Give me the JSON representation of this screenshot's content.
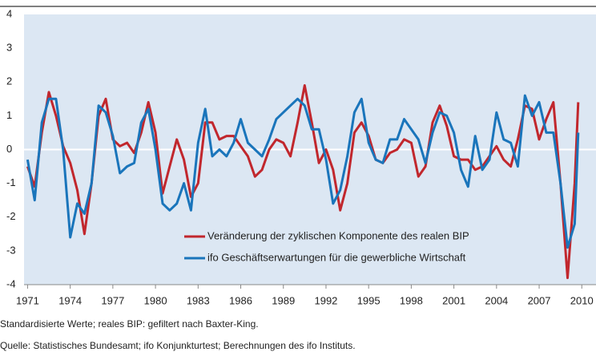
{
  "chart_data": {
    "type": "line",
    "notes": [
      "Standardisierte Werte; reales BIP: gefiltert nach Baxter-King.",
      "Quelle: Statistisches Bundesamt; ifo Konjunkturtest; Berechnungen des ifo Instituts."
    ],
    "x": [
      1971,
      1971.5,
      1972,
      1972.5,
      1973,
      1973.5,
      1974,
      1974.5,
      1975,
      1975.5,
      1976,
      1976.5,
      1977,
      1977.5,
      1978,
      1978.5,
      1979,
      1979.5,
      1980,
      1980.5,
      1981,
      1981.5,
      1982,
      1982.5,
      1983,
      1983.5,
      1984,
      1984.5,
      1985,
      1985.5,
      1986,
      1986.5,
      1987,
      1987.5,
      1988,
      1988.5,
      1989,
      1989.5,
      1990,
      1990.5,
      1991,
      1991.5,
      1992,
      1992.5,
      1993,
      1993.5,
      1994,
      1994.5,
      1995,
      1995.5,
      1996,
      1996.5,
      1997,
      1997.5,
      1998,
      1998.5,
      1999,
      1999.5,
      2000,
      2000.5,
      2001,
      2001.5,
      2002,
      2002.5,
      2003,
      2003.5,
      2004,
      2004.5,
      2005,
      2005.5,
      2006,
      2006.5,
      2007,
      2007.5,
      2008,
      2008.5,
      2009,
      2009.5,
      2009.75
    ],
    "series": [
      {
        "name": "Veränderung der zyklischen Komponente des realen BIP",
        "color": "#c1272d",
        "values": [
          -0.5,
          -1.1,
          0.5,
          1.7,
          1.0,
          0.1,
          -0.4,
          -1.2,
          -2.5,
          -1.0,
          1.0,
          1.5,
          0.3,
          0.1,
          0.2,
          -0.1,
          0.5,
          1.4,
          0.5,
          -1.3,
          -0.5,
          0.3,
          -0.3,
          -1.4,
          -1.0,
          0.8,
          0.8,
          0.3,
          0.4,
          0.4,
          0.1,
          -0.2,
          -0.8,
          -0.6,
          0.0,
          0.3,
          0.2,
          -0.2,
          0.8,
          1.9,
          0.8,
          -0.4,
          0.0,
          -0.6,
          -1.8,
          -1.0,
          0.5,
          0.8,
          0.4,
          -0.3,
          -0.4,
          -0.1,
          0.0,
          0.3,
          0.2,
          -0.8,
          -0.5,
          0.8,
          1.3,
          0.7,
          -0.2,
          -0.3,
          -0.3,
          -0.6,
          -0.5,
          -0.2,
          0.1,
          -0.3,
          -0.5,
          0.3,
          1.3,
          1.2,
          0.3,
          0.9,
          1.4,
          -1.0,
          -3.8,
          -1.0,
          1.4
        ]
      },
      {
        "name": "ifo Geschäftserwartungen für die gewerbliche Wirtschaft",
        "color": "#1a75bb",
        "values": [
          -0.3,
          -1.5,
          0.8,
          1.5,
          1.5,
          0.0,
          -2.6,
          -1.6,
          -1.9,
          -1.0,
          1.3,
          1.1,
          0.4,
          -0.7,
          -0.5,
          -0.4,
          0.8,
          1.2,
          0.0,
          -1.6,
          -1.8,
          -1.6,
          -1.0,
          -1.8,
          0.2,
          1.2,
          -0.2,
          0.0,
          -0.2,
          0.2,
          0.9,
          0.2,
          0.0,
          -0.2,
          0.3,
          0.9,
          1.1,
          1.3,
          1.5,
          1.3,
          0.6,
          0.6,
          -0.3,
          -1.6,
          -1.2,
          -0.2,
          1.1,
          1.5,
          0.2,
          -0.3,
          -0.4,
          0.3,
          0.3,
          0.9,
          0.6,
          0.3,
          -0.4,
          0.5,
          1.1,
          1.0,
          0.5,
          -0.6,
          -1.1,
          0.4,
          -0.6,
          -0.3,
          1.1,
          0.3,
          0.2,
          -0.5,
          1.6,
          1.0,
          1.4,
          0.5,
          0.5,
          -1.0,
          -2.9,
          -2.2,
          0.5
        ]
      }
    ],
    "xlim": [
      1970.75,
      2011
    ],
    "xticks": [
      1971,
      1974,
      1977,
      1980,
      1983,
      1986,
      1989,
      1992,
      1995,
      1998,
      2001,
      2004,
      2007,
      2010
    ],
    "ylim": [
      -4,
      4
    ],
    "yticks": [
      -4,
      -3,
      -2,
      -1,
      0,
      1,
      2,
      3,
      4
    ],
    "background": "#dce7f3"
  }
}
